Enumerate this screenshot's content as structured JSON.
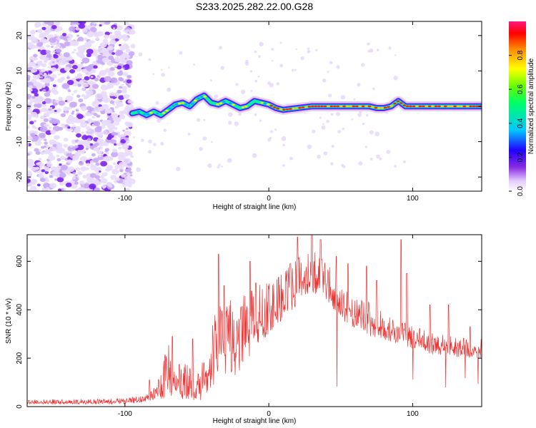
{
  "title": "S233.2025.282.22.00.G28",
  "chart_data": [
    {
      "type": "heatmap",
      "xlabel": "Height of straight line (km)",
      "ylabel": "Frequency (Hz)",
      "xlim": [
        -168,
        148
      ],
      "ylim": [
        -24,
        24
      ],
      "xticks": [
        -100,
        0,
        100
      ],
      "yticks": [
        -20,
        -10,
        0,
        10,
        20
      ],
      "colorbar": {
        "label": "Normalized spectral amplitude",
        "range": [
          0,
          1
        ],
        "ticks": [
          0.0,
          0.2,
          0.4,
          0.6,
          0.8
        ]
      },
      "noise_region": {
        "x_range": [
          -168,
          -95
        ],
        "freq_range": [
          -24,
          24
        ]
      },
      "ridge": {
        "x": [
          -95,
          -90,
          -85,
          -80,
          -75,
          -70,
          -65,
          -60,
          -55,
          -50,
          -45,
          -40,
          -35,
          -30,
          -25,
          -20,
          -15,
          -10,
          -5,
          0,
          5,
          10,
          20,
          30,
          40,
          50,
          60,
          70,
          75,
          80,
          85,
          90,
          95,
          100,
          110,
          120,
          130,
          140,
          148
        ],
        "freq": [
          -2,
          -1.5,
          -2.5,
          -1.5,
          -2.5,
          -1,
          0.5,
          1,
          0,
          2,
          3,
          1,
          0.5,
          1.5,
          0.5,
          -0.5,
          0,
          1.5,
          1,
          0.5,
          -0.5,
          -1,
          -0.5,
          0,
          0,
          0,
          0,
          0,
          -0.5,
          -0.5,
          0,
          1.5,
          0,
          0,
          0,
          0,
          0,
          0,
          0
        ]
      }
    },
    {
      "type": "line",
      "xlabel": "Height of straight line (km)",
      "ylabel": "SNR (10 * v/v)",
      "xlim": [
        -168,
        148
      ],
      "ylim": [
        0,
        710
      ],
      "xticks": [
        -100,
        0,
        100
      ],
      "yticks": [
        0,
        200,
        400,
        600
      ],
      "series": [
        {
          "name": "SNR",
          "color": "#ee3333",
          "envelope": {
            "x": [
              -168,
              -140,
              -100,
              -90,
              -85,
              -80,
              -75,
              -70,
              -65,
              -60,
              -55,
              -50,
              -45,
              -40,
              -35,
              -30,
              -25,
              -20,
              -15,
              -10,
              -5,
              0,
              5,
              10,
              20,
              25,
              30,
              35,
              40,
              45,
              50,
              60,
              70,
              80,
              90,
              100,
              110,
              120,
              130,
              140,
              148
            ],
            "lower": [
              10,
              10,
              10,
              15,
              20,
              25,
              30,
              40,
              40,
              30,
              20,
              10,
              40,
              80,
              90,
              90,
              110,
              150,
              190,
              220,
              260,
              300,
              330,
              360,
              420,
              460,
              470,
              460,
              430,
              400,
              360,
              320,
              290,
              270,
              260,
              240,
              220,
              210,
              205,
              200,
              200
            ],
            "upper": [
              30,
              30,
              35,
              45,
              50,
              75,
              140,
              270,
              160,
              190,
              170,
              130,
              200,
              380,
              420,
              430,
              450,
              470,
              480,
              490,
              510,
              520,
              540,
              560,
              620,
              640,
              650,
              640,
              600,
              550,
              500,
              470,
              430,
              400,
              360,
              340,
              310,
              300,
              290,
              280,
              280
            ],
            "spikes": [
              {
                "x": -83,
                "y": 110
              },
              {
                "x": -67,
                "y": 290
              },
              {
                "x": -53,
                "y": 280
              },
              {
                "x": -35,
                "y": 630
              },
              {
                "x": -31,
                "y": 500
              },
              {
                "x": -20,
                "y": 360
              },
              {
                "x": -13,
                "y": 600
              },
              {
                "x": -9,
                "y": 510
              },
              {
                "x": 15,
                "y": 590
              },
              {
                "x": 20,
                "y": 700
              },
              {
                "x": 30,
                "y": 710
              },
              {
                "x": 36,
                "y": 690
              },
              {
                "x": 47,
                "y": 620
              },
              {
                "x": 55,
                "y": 590
              },
              {
                "x": 68,
                "y": 580
              },
              {
                "x": 75,
                "y": 520
              },
              {
                "x": 92,
                "y": 690
              },
              {
                "x": 96,
                "y": 550
              },
              {
                "x": 112,
                "y": 420
              },
              {
                "x": 125,
                "y": 420
              },
              {
                "x": 140,
                "y": 330
              }
            ]
          }
        }
      ]
    }
  ]
}
